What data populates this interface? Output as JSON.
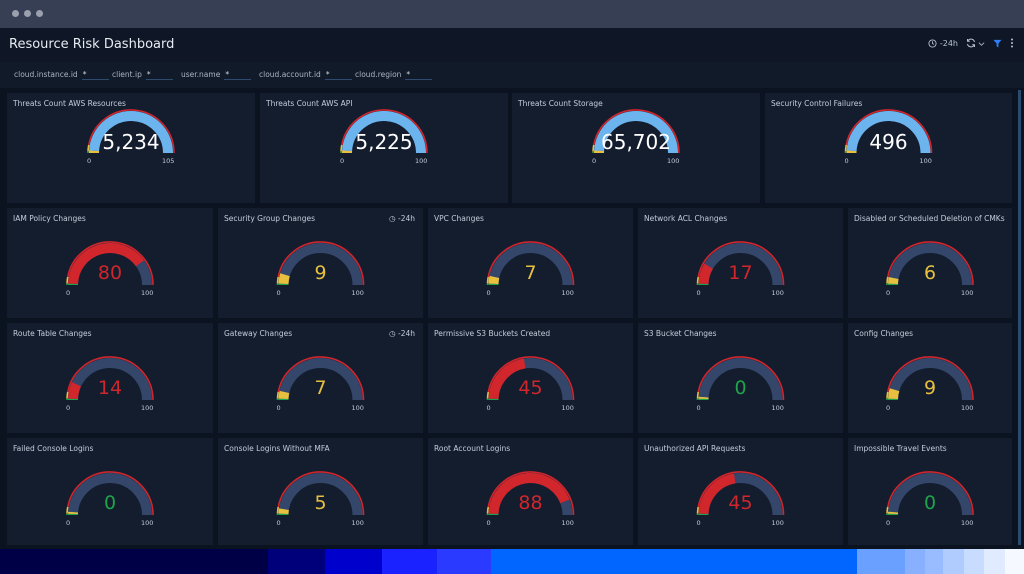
{
  "window": {
    "title": "Resource Risk Dashboard"
  },
  "header": {
    "time_range": "-24h",
    "icons": [
      "clock-icon",
      "refresh-icon",
      "chevron-down-icon",
      "filter-icon",
      "more-vertical-icon"
    ]
  },
  "filters": [
    {
      "label": "cloud.instance.id",
      "value": "*"
    },
    {
      "label": "client.ip",
      "value": "*"
    },
    {
      "label": "user.name",
      "value": "*"
    },
    {
      "label": "cloud.account.id",
      "value": "*"
    },
    {
      "label": "cloud.region",
      "value": "*"
    }
  ],
  "colors": {
    "red": "#d0262c",
    "yellow": "#e8c040",
    "green": "#1fa34a",
    "blue": "#6cb4ee",
    "track": "#34466a"
  },
  "top_panels": [
    {
      "title": "Threats Count AWS Resources",
      "value": "5,234",
      "min": "0",
      "max": "105",
      "fill": 1,
      "color": "blue"
    },
    {
      "title": "Threats Count AWS API",
      "value": "5,225",
      "min": "0",
      "max": "100",
      "fill": 1,
      "color": "blue"
    },
    {
      "title": "Threats Count Storage",
      "value": "65,702",
      "min": "0",
      "max": "100",
      "fill": 1,
      "color": "blue"
    },
    {
      "title": "Security Control Failures",
      "value": "496",
      "min": "0",
      "max": "100",
      "fill": 1,
      "color": "blue"
    }
  ],
  "panels": [
    {
      "title": "IAM Policy Changes",
      "value": "80",
      "min": "0",
      "max": "100",
      "fill": 0.8,
      "color": "red"
    },
    {
      "title": "Security Group Changes",
      "badge": "-24h",
      "value": "9",
      "min": "0",
      "max": "100",
      "fill": 0.09,
      "color": "yellow"
    },
    {
      "title": "VPC Changes",
      "value": "7",
      "min": "0",
      "max": "100",
      "fill": 0.07,
      "color": "yellow"
    },
    {
      "title": "Network ACL Changes",
      "value": "17",
      "min": "0",
      "max": "100",
      "fill": 0.17,
      "color": "red"
    },
    {
      "title": "Disabled or Scheduled Deletion of CMKs",
      "value": "6",
      "min": "0",
      "max": "100",
      "fill": 0.06,
      "color": "yellow"
    },
    {
      "title": "Route Table Changes",
      "value": "14",
      "min": "0",
      "max": "100",
      "fill": 0.14,
      "color": "red"
    },
    {
      "title": "Gateway Changes",
      "badge": "-24h",
      "value": "7",
      "min": "0",
      "max": "100",
      "fill": 0.07,
      "color": "yellow"
    },
    {
      "title": "Permissive S3 Buckets Created",
      "value": "45",
      "min": "0",
      "max": "100",
      "fill": 0.45,
      "color": "red"
    },
    {
      "title": "S3 Bucket Changes",
      "value": "0",
      "min": "0",
      "max": "100",
      "fill": 0,
      "color": "green"
    },
    {
      "title": "Config Changes",
      "value": "9",
      "min": "0",
      "max": "100",
      "fill": 0.09,
      "color": "yellow"
    },
    {
      "title": "Failed Console Logins",
      "value": "0",
      "min": "0",
      "max": "100",
      "fill": 0,
      "color": "green"
    },
    {
      "title": "Console Logins Without MFA",
      "value": "5",
      "min": "0",
      "max": "100",
      "fill": 0.05,
      "color": "yellow"
    },
    {
      "title": "Root Account Logins",
      "value": "88",
      "min": "0",
      "max": "100",
      "fill": 0.88,
      "color": "red"
    },
    {
      "title": "Unauthorized API Requests",
      "value": "45",
      "min": "0",
      "max": "100",
      "fill": 0.45,
      "color": "red"
    },
    {
      "title": "Impossible Travel Events",
      "value": "0",
      "min": "0",
      "max": "100",
      "fill": 0,
      "color": "green"
    }
  ],
  "strip_colors": [
    "#000046",
    "#00007a",
    "#0000cc",
    "#1a22ff",
    "#2a3aff",
    "#0066ff",
    "#6aa0ff",
    "#88b0ff",
    "#99bbff",
    "#b0ccff",
    "#c8dcff",
    "#e0ebff",
    "#f5f8ff"
  ]
}
